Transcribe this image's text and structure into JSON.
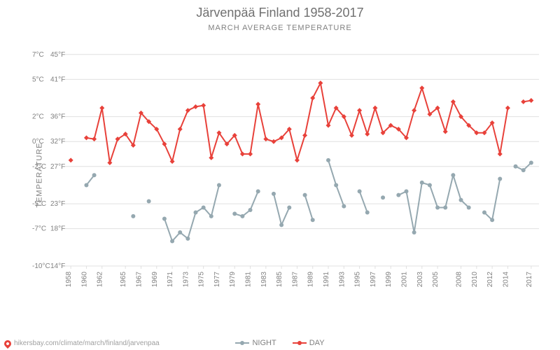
{
  "chart": {
    "type": "line",
    "title": "Järvenpää Finland 1958-2017",
    "subtitle": "MARCH AVERAGE TEMPERATURE",
    "ylabel": "TEMPERATURE",
    "background_color": "#ffffff",
    "grid_color": "#e0e0e0",
    "text_color": "#808080",
    "title_fontsize": 18,
    "subtitle_fontsize": 11,
    "label_fontsize": 11,
    "tick_fontsize": 10,
    "ylim_c": [
      -10,
      8
    ],
    "yticks": [
      {
        "c": -10,
        "label_c": "-10°C",
        "label_f": "14°F"
      },
      {
        "c": -7,
        "label_c": "-7°C",
        "label_f": "18°F"
      },
      {
        "c": -5,
        "label_c": "-5°C",
        "label_f": "23°F"
      },
      {
        "c": -2,
        "label_c": "-2°C",
        "label_f": "27°F"
      },
      {
        "c": 0,
        "label_c": "0°C",
        "label_f": "32°F"
      },
      {
        "c": 2,
        "label_c": "2°C",
        "label_f": "36°F"
      },
      {
        "c": 5,
        "label_c": "5°C",
        "label_f": "41°F"
      },
      {
        "c": 7,
        "label_c": "7°C",
        "label_f": "45°F"
      }
    ],
    "xlim": [
      1957,
      2018
    ],
    "xticks": [
      1958,
      1960,
      1962,
      1965,
      1967,
      1969,
      1971,
      1973,
      1975,
      1977,
      1979,
      1981,
      1983,
      1985,
      1987,
      1989,
      1991,
      1993,
      1995,
      1997,
      1999,
      2001,
      2003,
      2005,
      2008,
      2010,
      2012,
      2014,
      2017
    ],
    "legend": {
      "night": "NIGHT",
      "day": "DAY"
    },
    "series": {
      "day": {
        "name": "DAY",
        "color": "#e8413a",
        "marker": "diamond",
        "marker_size": 5,
        "line_width": 2,
        "segments": [
          [
            {
              "year": 1958,
              "c": -1.5
            }
          ],
          [
            {
              "year": 1960,
              "c": 0.3
            },
            {
              "year": 1961,
              "c": 0.2
            },
            {
              "year": 1962,
              "c": 2.7
            },
            {
              "year": 1963,
              "c": -1.7
            },
            {
              "year": 1964,
              "c": 0.2
            },
            {
              "year": 1965,
              "c": 0.6
            },
            {
              "year": 1966,
              "c": -0.3
            },
            {
              "year": 1967,
              "c": 2.3
            },
            {
              "year": 1968,
              "c": 1.6
            },
            {
              "year": 1969,
              "c": 1.0
            },
            {
              "year": 1970,
              "c": -0.2
            },
            {
              "year": 1971,
              "c": -1.6
            },
            {
              "year": 1972,
              "c": 1.0
            },
            {
              "year": 1973,
              "c": 2.5
            },
            {
              "year": 1974,
              "c": 2.8
            },
            {
              "year": 1975,
              "c": 2.9
            },
            {
              "year": 1976,
              "c": -1.3
            },
            {
              "year": 1977,
              "c": 0.7
            },
            {
              "year": 1978,
              "c": -0.2
            },
            {
              "year": 1979,
              "c": 0.5
            },
            {
              "year": 1980,
              "c": -1.0
            },
            {
              "year": 1981,
              "c": -1.0
            },
            {
              "year": 1982,
              "c": 3.0
            },
            {
              "year": 1983,
              "c": 0.2
            },
            {
              "year": 1984,
              "c": 0.0
            },
            {
              "year": 1985,
              "c": 0.3
            },
            {
              "year": 1986,
              "c": 1.0
            },
            {
              "year": 1987,
              "c": -1.5
            },
            {
              "year": 1988,
              "c": 0.5
            },
            {
              "year": 1989,
              "c": 3.5
            },
            {
              "year": 1990,
              "c": 4.7
            },
            {
              "year": 1991,
              "c": 1.3
            },
            {
              "year": 1992,
              "c": 2.7
            },
            {
              "year": 1993,
              "c": 2.0
            },
            {
              "year": 1994,
              "c": 0.5
            },
            {
              "year": 1995,
              "c": 2.5
            },
            {
              "year": 1996,
              "c": 0.6
            },
            {
              "year": 1997,
              "c": 2.7
            },
            {
              "year": 1998,
              "c": 0.7
            },
            {
              "year": 1999,
              "c": 1.3
            },
            {
              "year": 2000,
              "c": 1.0
            },
            {
              "year": 2001,
              "c": 0.3
            },
            {
              "year": 2002,
              "c": 2.5
            },
            {
              "year": 2003,
              "c": 4.3
            },
            {
              "year": 2004,
              "c": 2.2
            },
            {
              "year": 2005,
              "c": 2.7
            },
            {
              "year": 2006,
              "c": 0.8
            },
            {
              "year": 2007,
              "c": 3.2
            },
            {
              "year": 2008,
              "c": 2.0
            },
            {
              "year": 2009,
              "c": 1.3
            },
            {
              "year": 2010,
              "c": 0.7
            },
            {
              "year": 2011,
              "c": 0.7
            },
            {
              "year": 2012,
              "c": 1.5
            },
            {
              "year": 2013,
              "c": -1.0
            },
            {
              "year": 2014,
              "c": 2.7
            }
          ],
          [
            {
              "year": 2016,
              "c": 3.2
            },
            {
              "year": 2017,
              "c": 3.3
            }
          ]
        ]
      },
      "night": {
        "name": "NIGHT",
        "color": "#95a8b0",
        "marker": "circle",
        "marker_size": 4,
        "line_width": 2,
        "segments": [
          [
            {
              "year": 1960,
              "c": -3.5
            },
            {
              "year": 1961,
              "c": -2.7
            }
          ],
          [
            {
              "year": 1966,
              "c": -6.0
            }
          ],
          [
            {
              "year": 1968,
              "c": -4.8
            }
          ],
          [
            {
              "year": 1970,
              "c": -6.2
            },
            {
              "year": 1971,
              "c": -8.0
            },
            {
              "year": 1972,
              "c": -7.3
            },
            {
              "year": 1973,
              "c": -7.8
            },
            {
              "year": 1974,
              "c": -5.7
            },
            {
              "year": 1975,
              "c": -5.3
            },
            {
              "year": 1976,
              "c": -6.0
            },
            {
              "year": 1977,
              "c": -3.5
            }
          ],
          [
            {
              "year": 1979,
              "c": -5.8
            },
            {
              "year": 1980,
              "c": -6.0
            },
            {
              "year": 1981,
              "c": -5.5
            },
            {
              "year": 1982,
              "c": -4.0
            }
          ],
          [
            {
              "year": 1984,
              "c": -4.2
            },
            {
              "year": 1985,
              "c": -6.7
            },
            {
              "year": 1986,
              "c": -5.3
            }
          ],
          [
            {
              "year": 1988,
              "c": -4.3
            },
            {
              "year": 1989,
              "c": -6.3
            }
          ],
          [
            {
              "year": 1991,
              "c": -1.5
            },
            {
              "year": 1992,
              "c": -3.5
            },
            {
              "year": 1993,
              "c": -5.2
            }
          ],
          [
            {
              "year": 1995,
              "c": -4.0
            },
            {
              "year": 1996,
              "c": -5.7
            }
          ],
          [
            {
              "year": 1998,
              "c": -4.5
            }
          ],
          [
            {
              "year": 2000,
              "c": -4.3
            },
            {
              "year": 2001,
              "c": -4.0
            },
            {
              "year": 2002,
              "c": -7.3
            },
            {
              "year": 2003,
              "c": -3.3
            },
            {
              "year": 2004,
              "c": -3.5
            },
            {
              "year": 2005,
              "c": -5.3
            },
            {
              "year": 2006,
              "c": -5.3
            },
            {
              "year": 2007,
              "c": -2.7
            },
            {
              "year": 2008,
              "c": -4.7
            },
            {
              "year": 2009,
              "c": -5.3
            }
          ],
          [
            {
              "year": 2011,
              "c": -5.7
            },
            {
              "year": 2012,
              "c": -6.3
            },
            {
              "year": 2013,
              "c": -3.0
            }
          ],
          [
            {
              "year": 2015,
              "c": -2.0
            },
            {
              "year": 2016,
              "c": -2.3
            },
            {
              "year": 2017,
              "c": -1.7
            }
          ]
        ]
      }
    },
    "attribution": "hikersbay.com/climate/march/finland/jarvenpaa"
  }
}
